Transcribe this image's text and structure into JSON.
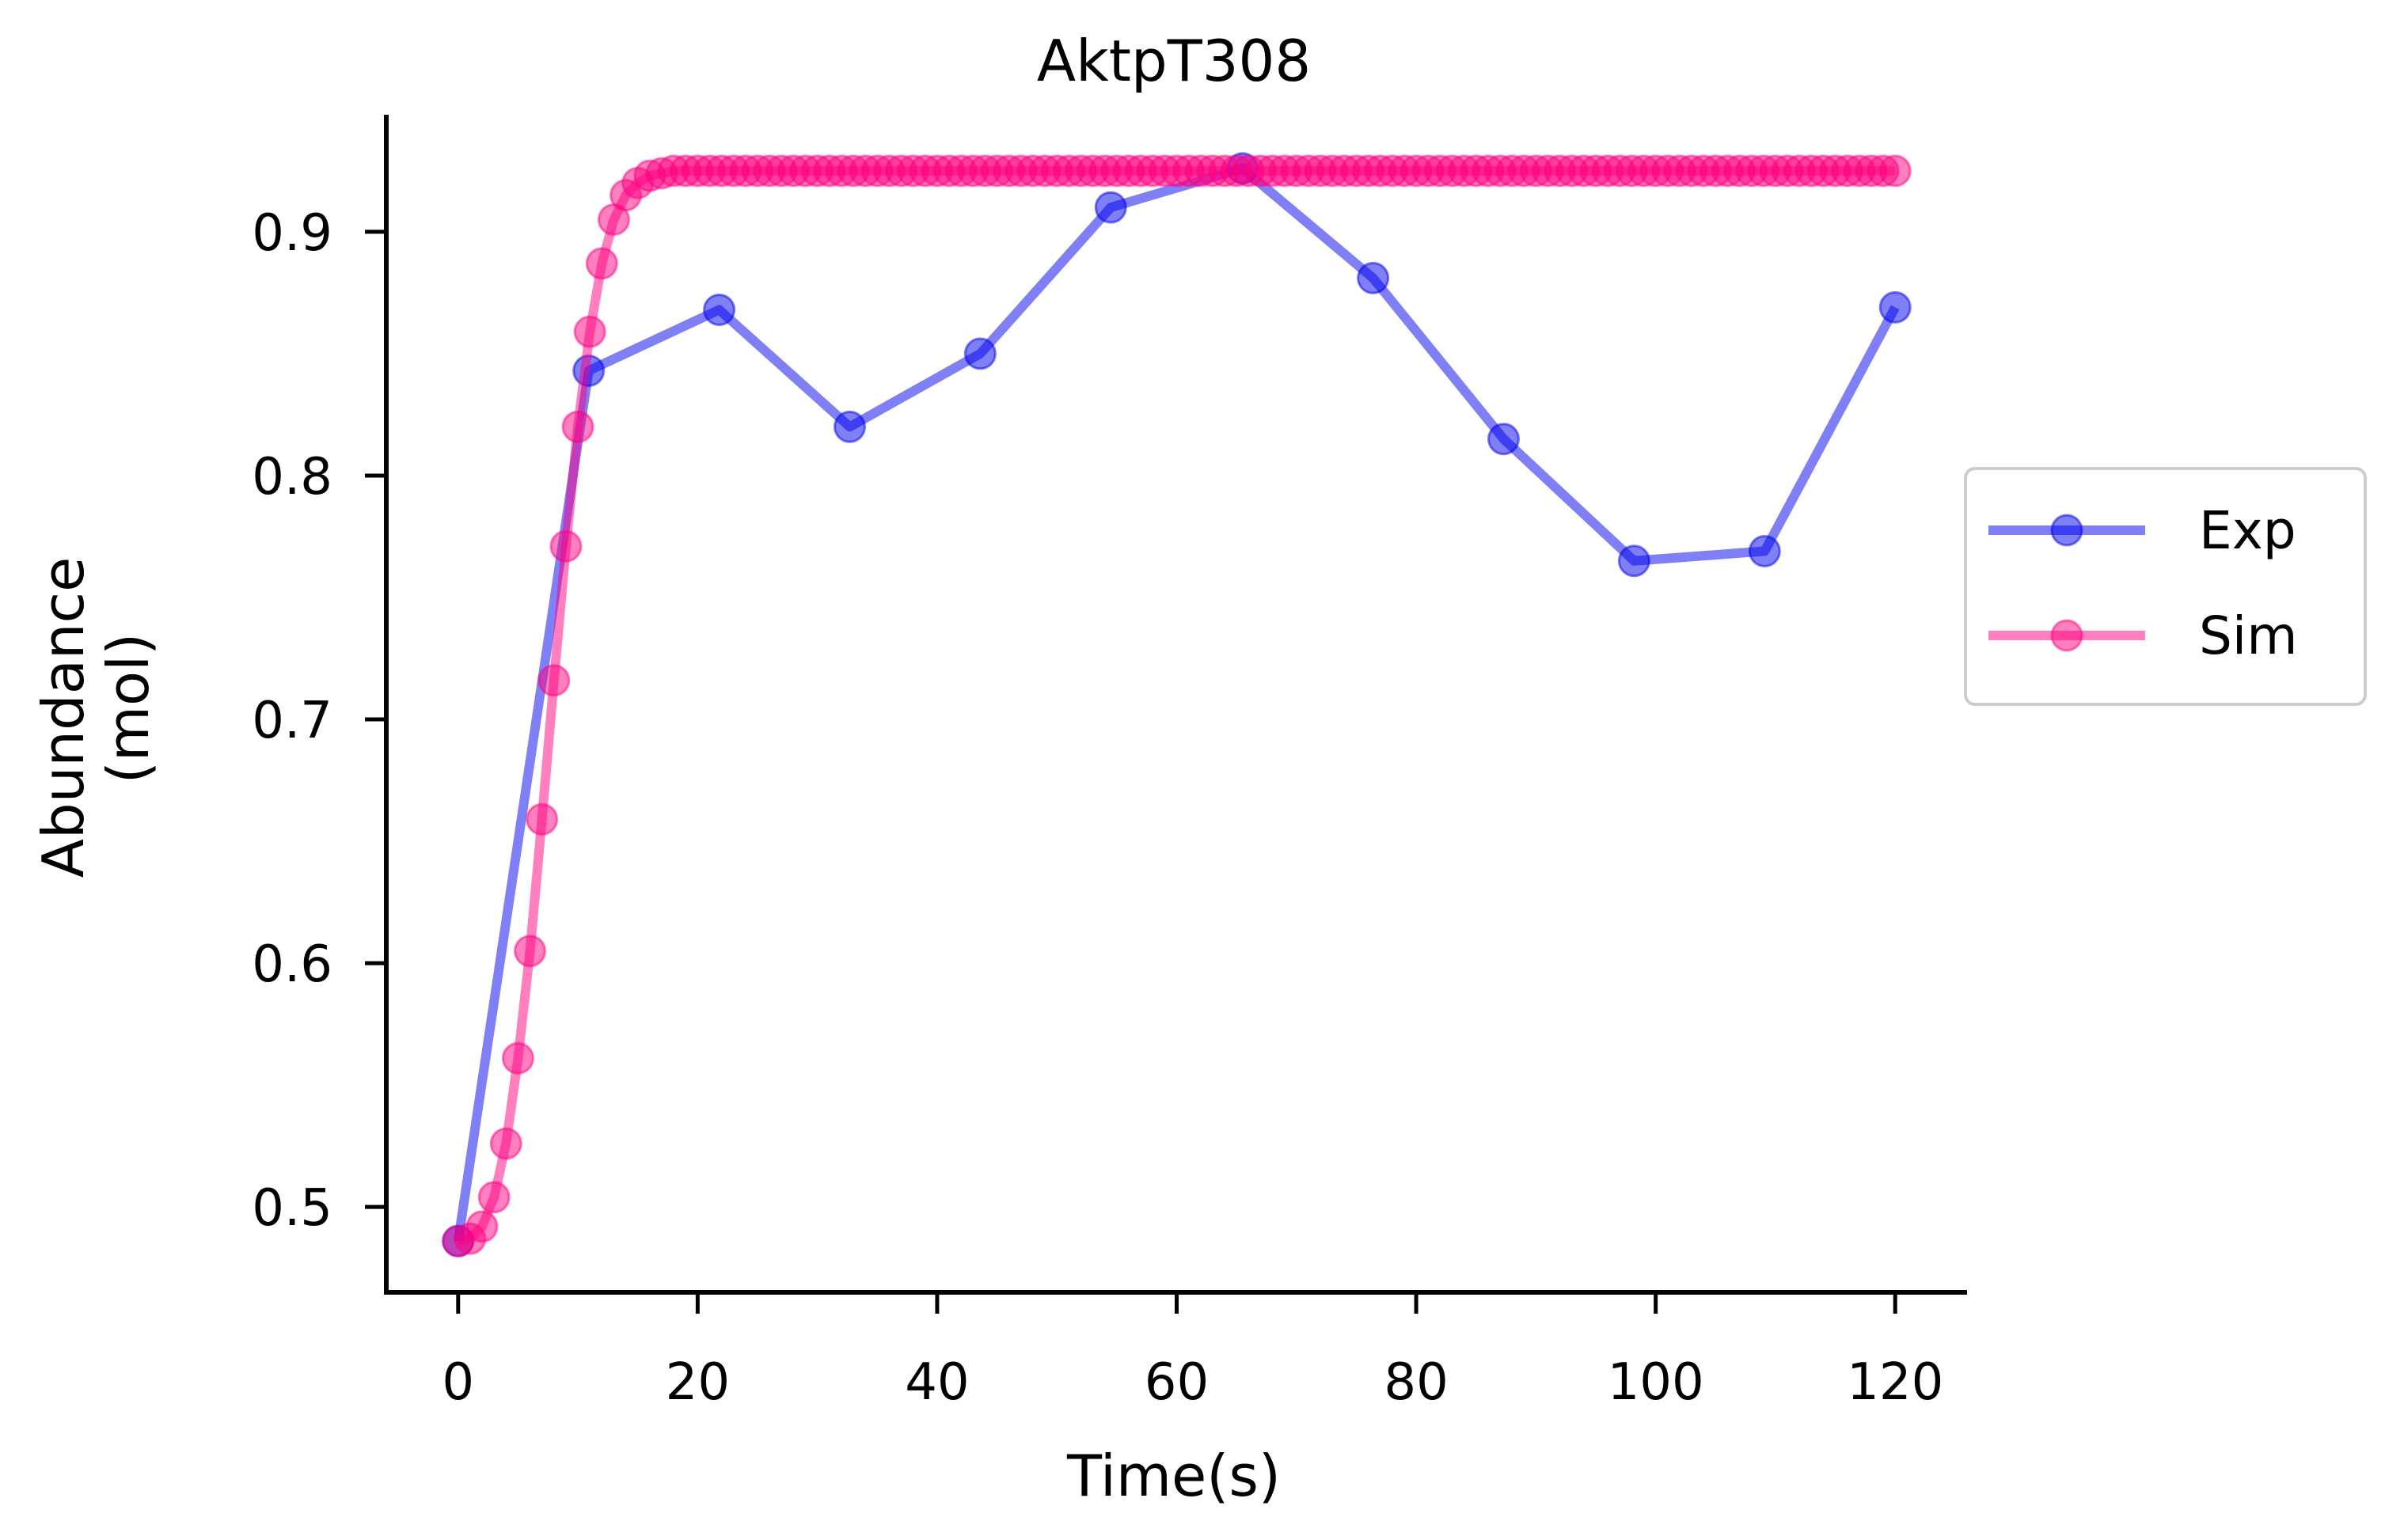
{
  "chart_data": {
    "type": "line",
    "title": "AktpT308",
    "xlabel": "Time(s)",
    "ylabel": [
      "Abundance",
      "(mol)"
    ],
    "xlim": [
      -6,
      126
    ],
    "ylim": [
      0.465,
      0.948
    ],
    "xticks": [
      0,
      20,
      40,
      60,
      80,
      100,
      120
    ],
    "yticks": [
      0.5,
      0.6,
      0.7,
      0.8,
      0.9
    ],
    "grid": false,
    "legend_position": "center-right, outside plot",
    "series": [
      {
        "name": "Exp",
        "color": "#0000ee",
        "x": [
          0,
          10.9,
          21.8,
          32.7,
          43.6,
          54.5,
          65.5,
          76.4,
          87.3,
          98.2,
          109.1,
          120
        ],
        "y": [
          0.486,
          0.843,
          0.868,
          0.82,
          0.85,
          0.91,
          0.926,
          0.881,
          0.815,
          0.765,
          0.769,
          0.869
        ]
      },
      {
        "name": "Sim",
        "color": "#ff007f",
        "x_start": 0,
        "x_step": 1,
        "x_end": 120,
        "y_head": [
          0.486,
          0.487,
          0.492,
          0.504,
          0.526,
          0.561,
          0.605,
          0.659,
          0.716,
          0.771,
          0.82,
          0.859,
          0.887,
          0.905,
          0.915,
          0.92,
          0.923,
          0.924,
          0.925
        ],
        "y_plateau": 0.925
      }
    ]
  }
}
